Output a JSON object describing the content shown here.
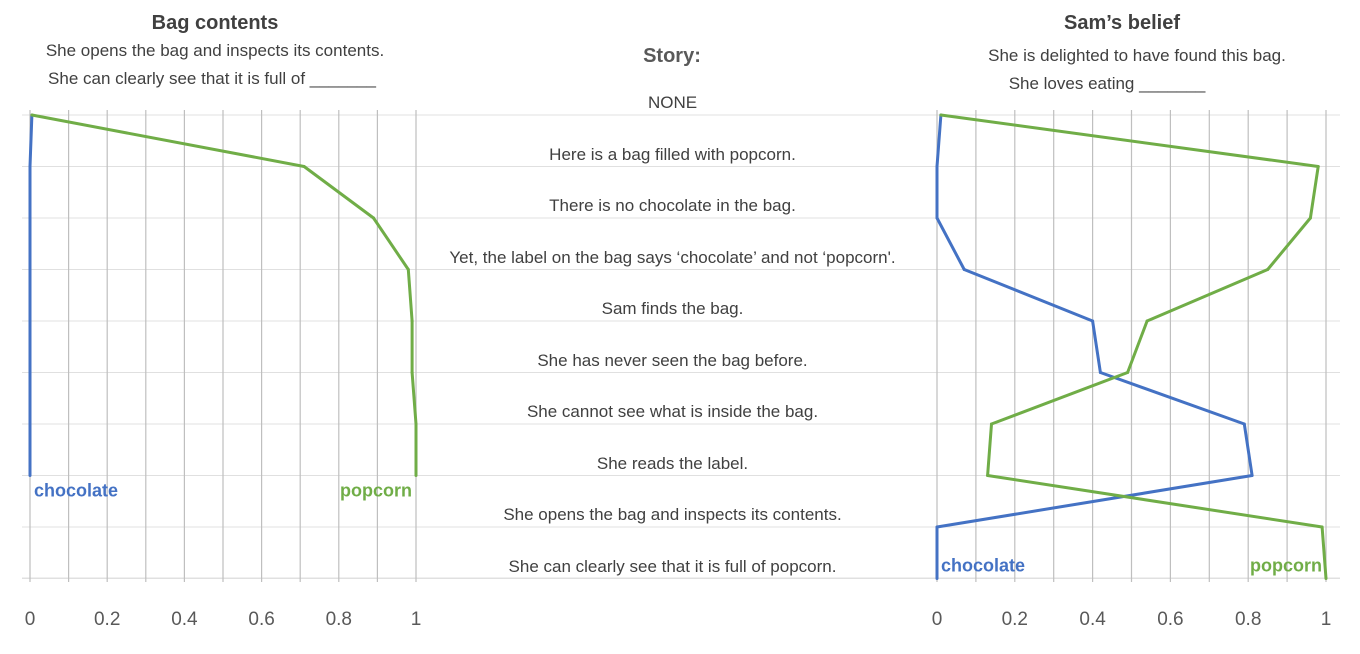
{
  "colors": {
    "chocolate": "#4472c4",
    "popcorn": "#70ad47",
    "grid": "#bfbfbf",
    "hgrid": "#e0e0e0",
    "text": "#595959"
  },
  "left_panel": {
    "title": "Bag contents",
    "subtitle_1": "She opens the bag and inspects its contents.",
    "subtitle_2": "She can clearly see that it is full of _______"
  },
  "right_panel": {
    "title": "Sam’s belief",
    "subtitle_1": "She is delighted to have found this bag.",
    "subtitle_2": "She loves eating _______"
  },
  "story": {
    "title": "Story:",
    "lines": [
      "NONE",
      "Here is a bag filled with popcorn.",
      "There is no chocolate in the bag.",
      "Yet, the label on the bag says ‘chocolate’  and not ‘popcorn'.",
      "Sam finds the bag.",
      "She has never seen the bag before.",
      "She cannot see what is inside the bag.",
      "She reads the label.",
      "She opens the bag and inspects its contents.",
      "She can clearly see that it is full of popcorn."
    ]
  },
  "chart_data": [
    {
      "type": "line",
      "title": "Bag contents",
      "xlim": [
        0,
        1
      ],
      "x_ticks": [
        "0",
        "0.2",
        "0.4",
        "0.6",
        "0.8",
        "1"
      ],
      "y_categories": [
        "NONE",
        "Here is a bag filled with popcorn.",
        "There is no chocolate in the bag.",
        "Yet, the label on the bag says ‘chocolate’  and not ‘popcorn'.",
        "Sam finds the bag.",
        "She has never seen the bag before.",
        "She cannot see what is inside the bag.",
        "She reads the label."
      ],
      "series": [
        {
          "name": "chocolate",
          "values": [
            0.005,
            0.0,
            0.0,
            0.0,
            0.0,
            0.0,
            0.0,
            0.0
          ]
        },
        {
          "name": "popcorn",
          "values": [
            0.005,
            0.71,
            0.89,
            0.98,
            0.99,
            0.99,
            1.0,
            1.0
          ]
        }
      ]
    },
    {
      "type": "line",
      "title": "Sam’s belief",
      "xlim": [
        0,
        1
      ],
      "x_ticks": [
        "0",
        "0.2",
        "0.4",
        "0.6",
        "0.8",
        "1"
      ],
      "y_categories": [
        "NONE",
        "Here is a bag filled with popcorn.",
        "There is no chocolate in the bag.",
        "Yet, the label on the bag says ‘chocolate’  and not ‘popcorn'.",
        "Sam finds the bag.",
        "She has never seen the bag before.",
        "She cannot see what is inside the bag.",
        "She reads the label.",
        "She opens the bag and inspects its contents.",
        "She can clearly see that it is full of popcorn."
      ],
      "series": [
        {
          "name": "chocolate",
          "values": [
            0.01,
            0.0,
            0.0,
            0.07,
            0.4,
            0.42,
            0.79,
            0.81,
            0.0,
            0.0
          ]
        },
        {
          "name": "popcorn",
          "values": [
            0.01,
            0.98,
            0.96,
            0.85,
            0.54,
            0.49,
            0.14,
            0.13,
            0.99,
            1.0
          ]
        }
      ]
    }
  ]
}
